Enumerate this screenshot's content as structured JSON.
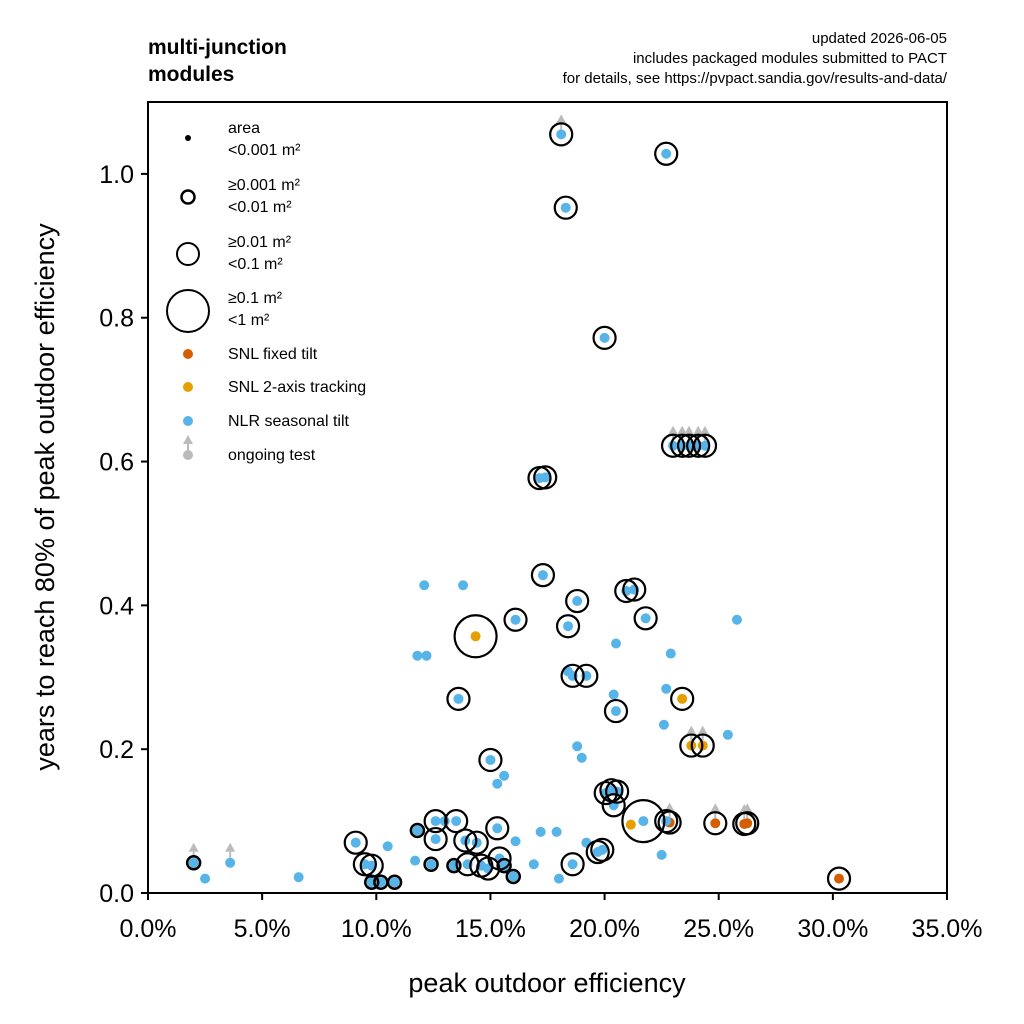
{
  "chart_data": {
    "type": "scatter",
    "title_lines": [
      "multi-junction",
      "modules"
    ],
    "notes": [
      "updated 2026-06-05",
      "includes packaged modules submitted to PACT",
      "for details, see https://pvpact.sandia.gov/results-and-data/"
    ],
    "xlabel": "peak outdoor efficiency",
    "ylabel": "years to reach 80% of peak outdoor efficiency",
    "xlim": [
      0,
      0.35
    ],
    "ylim": [
      0,
      1.1
    ],
    "x_ticks": [
      0,
      0.05,
      0.1,
      0.15,
      0.2,
      0.25,
      0.3,
      0.35
    ],
    "x_tick_labels": [
      "0.0%",
      "5.0%",
      "10.0%",
      "15.0%",
      "20.0%",
      "25.0%",
      "30.0%",
      "35.0%"
    ],
    "y_ticks": [
      0,
      0.2,
      0.4,
      0.6,
      0.8,
      1.0
    ],
    "y_tick_labels": [
      "0.0",
      "0.2",
      "0.4",
      "0.6",
      "0.8",
      "1.0"
    ],
    "grid": false,
    "legend_position": "top-left",
    "legend": {
      "size_title": "area",
      "size_entries": [
        {
          "lines": [
            "<0.001 m²"
          ],
          "size": "xs"
        },
        {
          "lines": [
            "≥0.001 m²",
            "<0.01 m²"
          ],
          "size": "s"
        },
        {
          "lines": [
            "≥0.01 m²",
            "<0.1 m²"
          ],
          "size": "m"
        },
        {
          "lines": [
            "≥0.1 m²",
            "<1 m²"
          ],
          "size": "l"
        }
      ],
      "series_entries": [
        {
          "label": "SNL fixed tilt",
          "color": "#d55e00"
        },
        {
          "label": "SNL 2-axis tracking",
          "color": "#e69f00"
        },
        {
          "label": "NLR seasonal tilt",
          "color": "#56b4e9"
        }
      ],
      "ongoing_label": "ongoing test",
      "ongoing_color": "#bbbbbb"
    },
    "series": [
      {
        "name": "SNL fixed tilt",
        "color": "#d55e00",
        "points": [
          {
            "x": 0.2285,
            "y": 0.098,
            "size": "m",
            "ongoing": true
          },
          {
            "x": 0.2485,
            "y": 0.097,
            "size": "m",
            "ongoing": true
          },
          {
            "x": 0.2612,
            "y": 0.096,
            "size": "m",
            "ongoing": true
          },
          {
            "x": 0.2625,
            "y": 0.097,
            "size": "m",
            "ongoing": true
          },
          {
            "x": 0.3027,
            "y": 0.02,
            "size": "m"
          }
        ]
      },
      {
        "name": "SNL 2-axis tracking",
        "color": "#e69f00",
        "points": [
          {
            "x": 0.1435,
            "y": 0.357,
            "size": "l"
          },
          {
            "x": 0.234,
            "y": 0.27,
            "size": "m"
          },
          {
            "x": 0.238,
            "y": 0.205,
            "size": "m",
            "ongoing": true
          },
          {
            "x": 0.243,
            "y": 0.205,
            "size": "m",
            "ongoing": true
          },
          {
            "x": 0.2115,
            "y": 0.095,
            "size": "xs"
          }
        ]
      },
      {
        "name": "NLR seasonal tilt",
        "color": "#56b4e9",
        "points": [
          {
            "x": 0.181,
            "y": 1.055,
            "size": "m",
            "ongoing": true
          },
          {
            "x": 0.227,
            "y": 1.028,
            "size": "m"
          },
          {
            "x": 0.183,
            "y": 0.953,
            "size": "m"
          },
          {
            "x": 0.2,
            "y": 0.772,
            "size": "m"
          },
          {
            "x": 0.23,
            "y": 0.622,
            "size": "m",
            "ongoing": true
          },
          {
            "x": 0.234,
            "y": 0.622,
            "size": "m",
            "ongoing": true
          },
          {
            "x": 0.237,
            "y": 0.622,
            "size": "m",
            "ongoing": true
          },
          {
            "x": 0.241,
            "y": 0.622,
            "size": "m",
            "ongoing": true
          },
          {
            "x": 0.244,
            "y": 0.622,
            "size": "m",
            "ongoing": true
          },
          {
            "x": 0.1715,
            "y": 0.577,
            "size": "m"
          },
          {
            "x": 0.174,
            "y": 0.578,
            "size": "m"
          },
          {
            "x": 0.173,
            "y": 0.442,
            "size": "m"
          },
          {
            "x": 0.121,
            "y": 0.428,
            "size": "xs"
          },
          {
            "x": 0.138,
            "y": 0.428,
            "size": "xs"
          },
          {
            "x": 0.2095,
            "y": 0.42,
            "size": "m"
          },
          {
            "x": 0.213,
            "y": 0.422,
            "size": "m"
          },
          {
            "x": 0.188,
            "y": 0.406,
            "size": "m"
          },
          {
            "x": 0.161,
            "y": 0.38,
            "size": "m"
          },
          {
            "x": 0.184,
            "y": 0.371,
            "size": "m"
          },
          {
            "x": 0.218,
            "y": 0.382,
            "size": "m"
          },
          {
            "x": 0.258,
            "y": 0.38,
            "size": "xs"
          },
          {
            "x": 0.205,
            "y": 0.347,
            "size": "xs"
          },
          {
            "x": 0.118,
            "y": 0.33,
            "size": "xs"
          },
          {
            "x": 0.122,
            "y": 0.33,
            "size": "xs"
          },
          {
            "x": 0.229,
            "y": 0.333,
            "size": "xs"
          },
          {
            "x": 0.186,
            "y": 0.302,
            "size": "m"
          },
          {
            "x": 0.192,
            "y": 0.302,
            "size": "m"
          },
          {
            "x": 0.184,
            "y": 0.308,
            "size": "xs"
          },
          {
            "x": 0.227,
            "y": 0.284,
            "size": "xs"
          },
          {
            "x": 0.204,
            "y": 0.276,
            "size": "xs"
          },
          {
            "x": 0.136,
            "y": 0.27,
            "size": "m"
          },
          {
            "x": 0.205,
            "y": 0.253,
            "size": "m"
          },
          {
            "x": 0.226,
            "y": 0.234,
            "size": "xs"
          },
          {
            "x": 0.254,
            "y": 0.22,
            "size": "xs"
          },
          {
            "x": 0.188,
            "y": 0.204,
            "size": "xs"
          },
          {
            "x": 0.19,
            "y": 0.188,
            "size": "xs"
          },
          {
            "x": 0.15,
            "y": 0.185,
            "size": "m"
          },
          {
            "x": 0.156,
            "y": 0.163,
            "size": "xs"
          },
          {
            "x": 0.153,
            "y": 0.152,
            "size": "xs"
          },
          {
            "x": 0.2005,
            "y": 0.139,
            "size": "m"
          },
          {
            "x": 0.203,
            "y": 0.143,
            "size": "m"
          },
          {
            "x": 0.2055,
            "y": 0.141,
            "size": "m"
          },
          {
            "x": 0.204,
            "y": 0.122,
            "size": "m"
          },
          {
            "x": 0.105,
            "y": 0.065,
            "size": "xs"
          },
          {
            "x": 0.118,
            "y": 0.087,
            "size": "s"
          },
          {
            "x": 0.126,
            "y": 0.1,
            "size": "m"
          },
          {
            "x": 0.135,
            "y": 0.1,
            "size": "m"
          },
          {
            "x": 0.13,
            "y": 0.1,
            "size": "xs"
          },
          {
            "x": 0.153,
            "y": 0.09,
            "size": "m"
          },
          {
            "x": 0.172,
            "y": 0.085,
            "size": "xs"
          },
          {
            "x": 0.179,
            "y": 0.085,
            "size": "xs"
          },
          {
            "x": 0.126,
            "y": 0.075,
            "size": "m"
          },
          {
            "x": 0.139,
            "y": 0.073,
            "size": "m"
          },
          {
            "x": 0.144,
            "y": 0.07,
            "size": "m"
          },
          {
            "x": 0.161,
            "y": 0.072,
            "size": "xs"
          },
          {
            "x": 0.091,
            "y": 0.07,
            "size": "m"
          },
          {
            "x": 0.095,
            "y": 0.04,
            "size": "m"
          },
          {
            "x": 0.098,
            "y": 0.038,
            "size": "m"
          },
          {
            "x": 0.117,
            "y": 0.045,
            "size": "xs"
          },
          {
            "x": 0.124,
            "y": 0.04,
            "size": "s"
          },
          {
            "x": 0.134,
            "y": 0.038,
            "size": "s"
          },
          {
            "x": 0.14,
            "y": 0.04,
            "size": "m"
          },
          {
            "x": 0.146,
            "y": 0.038,
            "size": "m"
          },
          {
            "x": 0.149,
            "y": 0.034,
            "size": "m"
          },
          {
            "x": 0.154,
            "y": 0.048,
            "size": "m"
          },
          {
            "x": 0.156,
            "y": 0.038,
            "size": "s"
          },
          {
            "x": 0.169,
            "y": 0.04,
            "size": "xs"
          },
          {
            "x": 0.186,
            "y": 0.04,
            "size": "m"
          },
          {
            "x": 0.192,
            "y": 0.07,
            "size": "xs"
          },
          {
            "x": 0.197,
            "y": 0.057,
            "size": "m"
          },
          {
            "x": 0.199,
            "y": 0.06,
            "size": "m"
          },
          {
            "x": 0.18,
            "y": 0.02,
            "size": "xs"
          },
          {
            "x": 0.16,
            "y": 0.023,
            "size": "s"
          },
          {
            "x": 0.098,
            "y": 0.015,
            "size": "s"
          },
          {
            "x": 0.102,
            "y": 0.015,
            "size": "s"
          },
          {
            "x": 0.108,
            "y": 0.015,
            "size": "s"
          },
          {
            "x": 0.225,
            "y": 0.053,
            "size": "xs"
          },
          {
            "x": 0.217,
            "y": 0.1,
            "size": "l"
          },
          {
            "x": 0.227,
            "y": 0.1,
            "size": "m"
          },
          {
            "x": 0.02,
            "y": 0.042,
            "size": "s",
            "ongoing": true
          },
          {
            "x": 0.036,
            "y": 0.042,
            "size": "xs",
            "ongoing": true
          },
          {
            "x": 0.025,
            "y": 0.02,
            "size": "xs"
          },
          {
            "x": 0.066,
            "y": 0.022,
            "size": "xs"
          }
        ]
      }
    ]
  }
}
